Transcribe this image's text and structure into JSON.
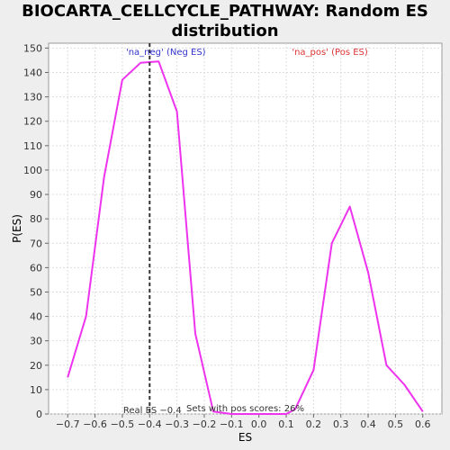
{
  "chart_data": {
    "type": "line",
    "title": "BIOCARTA_CELLCYCLE_PATHWAY: Random ES distribution",
    "xlabel": "ES",
    "ylabel": "P(ES)",
    "xlim": [
      -0.77,
      0.67
    ],
    "ylim": [
      0,
      152
    ],
    "x_ticks": [
      -0.7,
      -0.6,
      -0.5,
      -0.4,
      -0.3,
      -0.2,
      -0.1,
      0.0,
      0.1,
      0.2,
      0.3,
      0.4,
      0.5,
      0.6
    ],
    "x_tick_labels": [
      "−0.7",
      "−0.6",
      "−0.5",
      "−0.4",
      "−0.3",
      "−0.2",
      "−0.1",
      "0.0",
      "0.1",
      "0.2",
      "0.3",
      "0.4",
      "0.5",
      "0.6"
    ],
    "y_ticks": [
      0,
      10,
      20,
      30,
      40,
      50,
      60,
      70,
      80,
      90,
      100,
      110,
      120,
      130,
      140,
      150
    ],
    "grid": true,
    "series": [
      {
        "color": "#ee33ee",
        "x": [
          -0.7,
          -0.633,
          -0.567,
          -0.5,
          -0.433,
          -0.367,
          -0.3,
          -0.233,
          -0.167,
          -0.1,
          -0.033,
          0.033,
          0.1,
          0.133,
          0.2,
          0.267,
          0.333,
          0.4,
          0.467,
          0.533,
          0.6
        ],
        "y": [
          15,
          40,
          97,
          137,
          144,
          144.5,
          124,
          33,
          1,
          0,
          0,
          0,
          0,
          2,
          18,
          70,
          85,
          58,
          20,
          12,
          1
        ]
      }
    ],
    "real_es": -0.4,
    "annotations": {
      "neg_label": "'na_neg' (Neg ES)",
      "pos_label": "'na_pos' (Pos ES)",
      "real_es_label": "Real ES −0.4",
      "pos_scores_label": "Sets with pos scores: 26%"
    },
    "colors": {
      "line": "#ee33ee",
      "neg_text": "#3333cc",
      "pos_text": "#dd3333",
      "real_es_line": "#333333"
    }
  }
}
